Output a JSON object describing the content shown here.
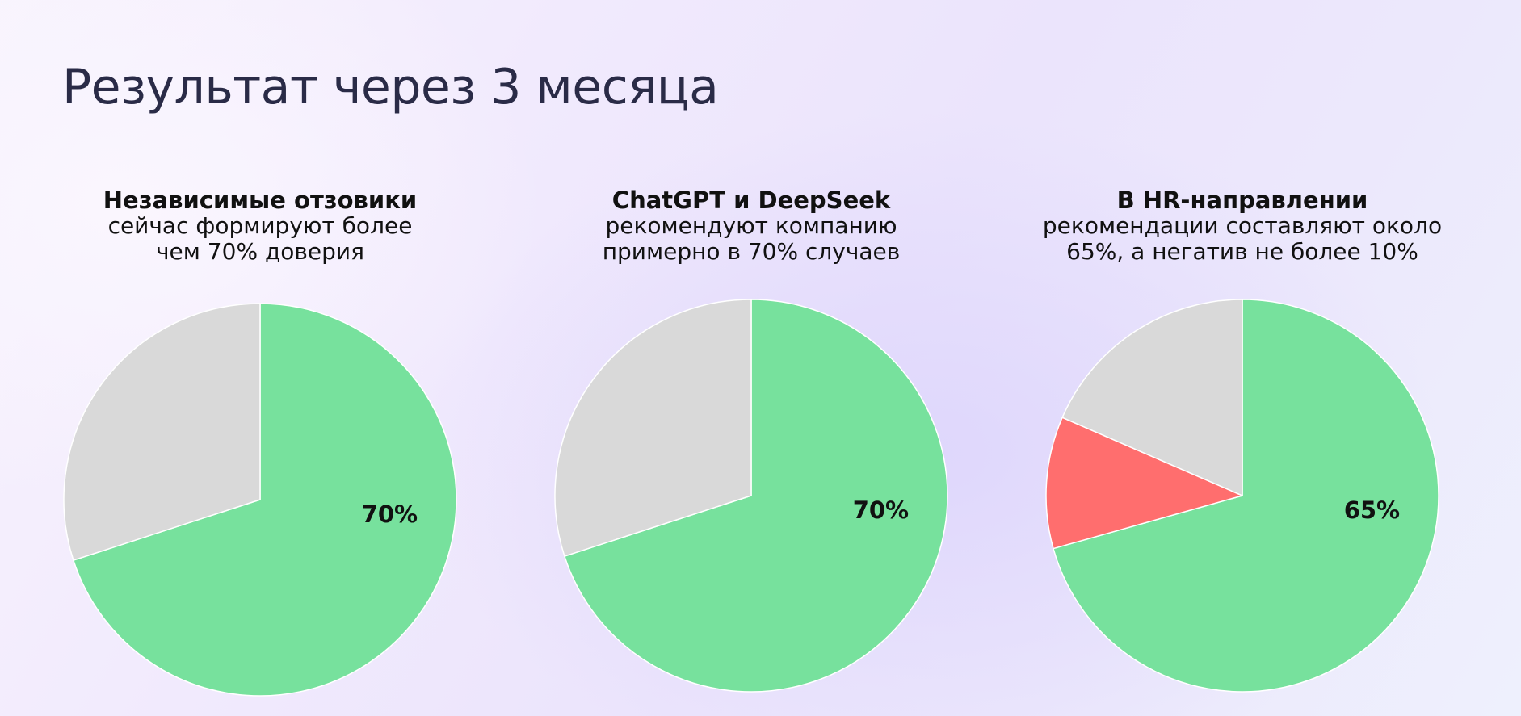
{
  "title": "Результат через 3 месяца",
  "colors": {
    "green": "#77e19d",
    "gray": "#d9d9d9",
    "red": "#ff6e6e",
    "title": "#2a2b47"
  },
  "charts": [
    {
      "caption_bold": "Независимые отзовики",
      "caption_line1": "сейчас формируют более",
      "caption_line2": "чем 70% доверия"
    },
    {
      "caption_bold": "ChatGPT и DeepSeek",
      "caption_line1": "рекомендуют компанию",
      "caption_line2": "примерно в 70% случаев"
    },
    {
      "caption_bold": "В HR-направлении",
      "caption_line1": "рекомендации составляют около",
      "caption_line2": "65%, а негатив не более 10%"
    }
  ],
  "chart_data": [
    {
      "type": "pie",
      "slices": [
        {
          "value": 70,
          "color": "#77e19d",
          "label": "70%"
        },
        {
          "value": 30,
          "color": "#d9d9d9",
          "label": ""
        }
      ]
    },
    {
      "type": "pie",
      "slices": [
        {
          "value": 70,
          "color": "#77e19d",
          "label": "70%"
        },
        {
          "value": 30,
          "color": "#d9d9d9",
          "label": ""
        }
      ]
    },
    {
      "type": "pie",
      "slices": [
        {
          "value": 65,
          "color": "#77e19d",
          "label": "65%"
        },
        {
          "value": 10,
          "color": "#ff6e6e",
          "label": ""
        },
        {
          "value": 17,
          "color": "#d9d9d9",
          "label": ""
        }
      ]
    }
  ]
}
